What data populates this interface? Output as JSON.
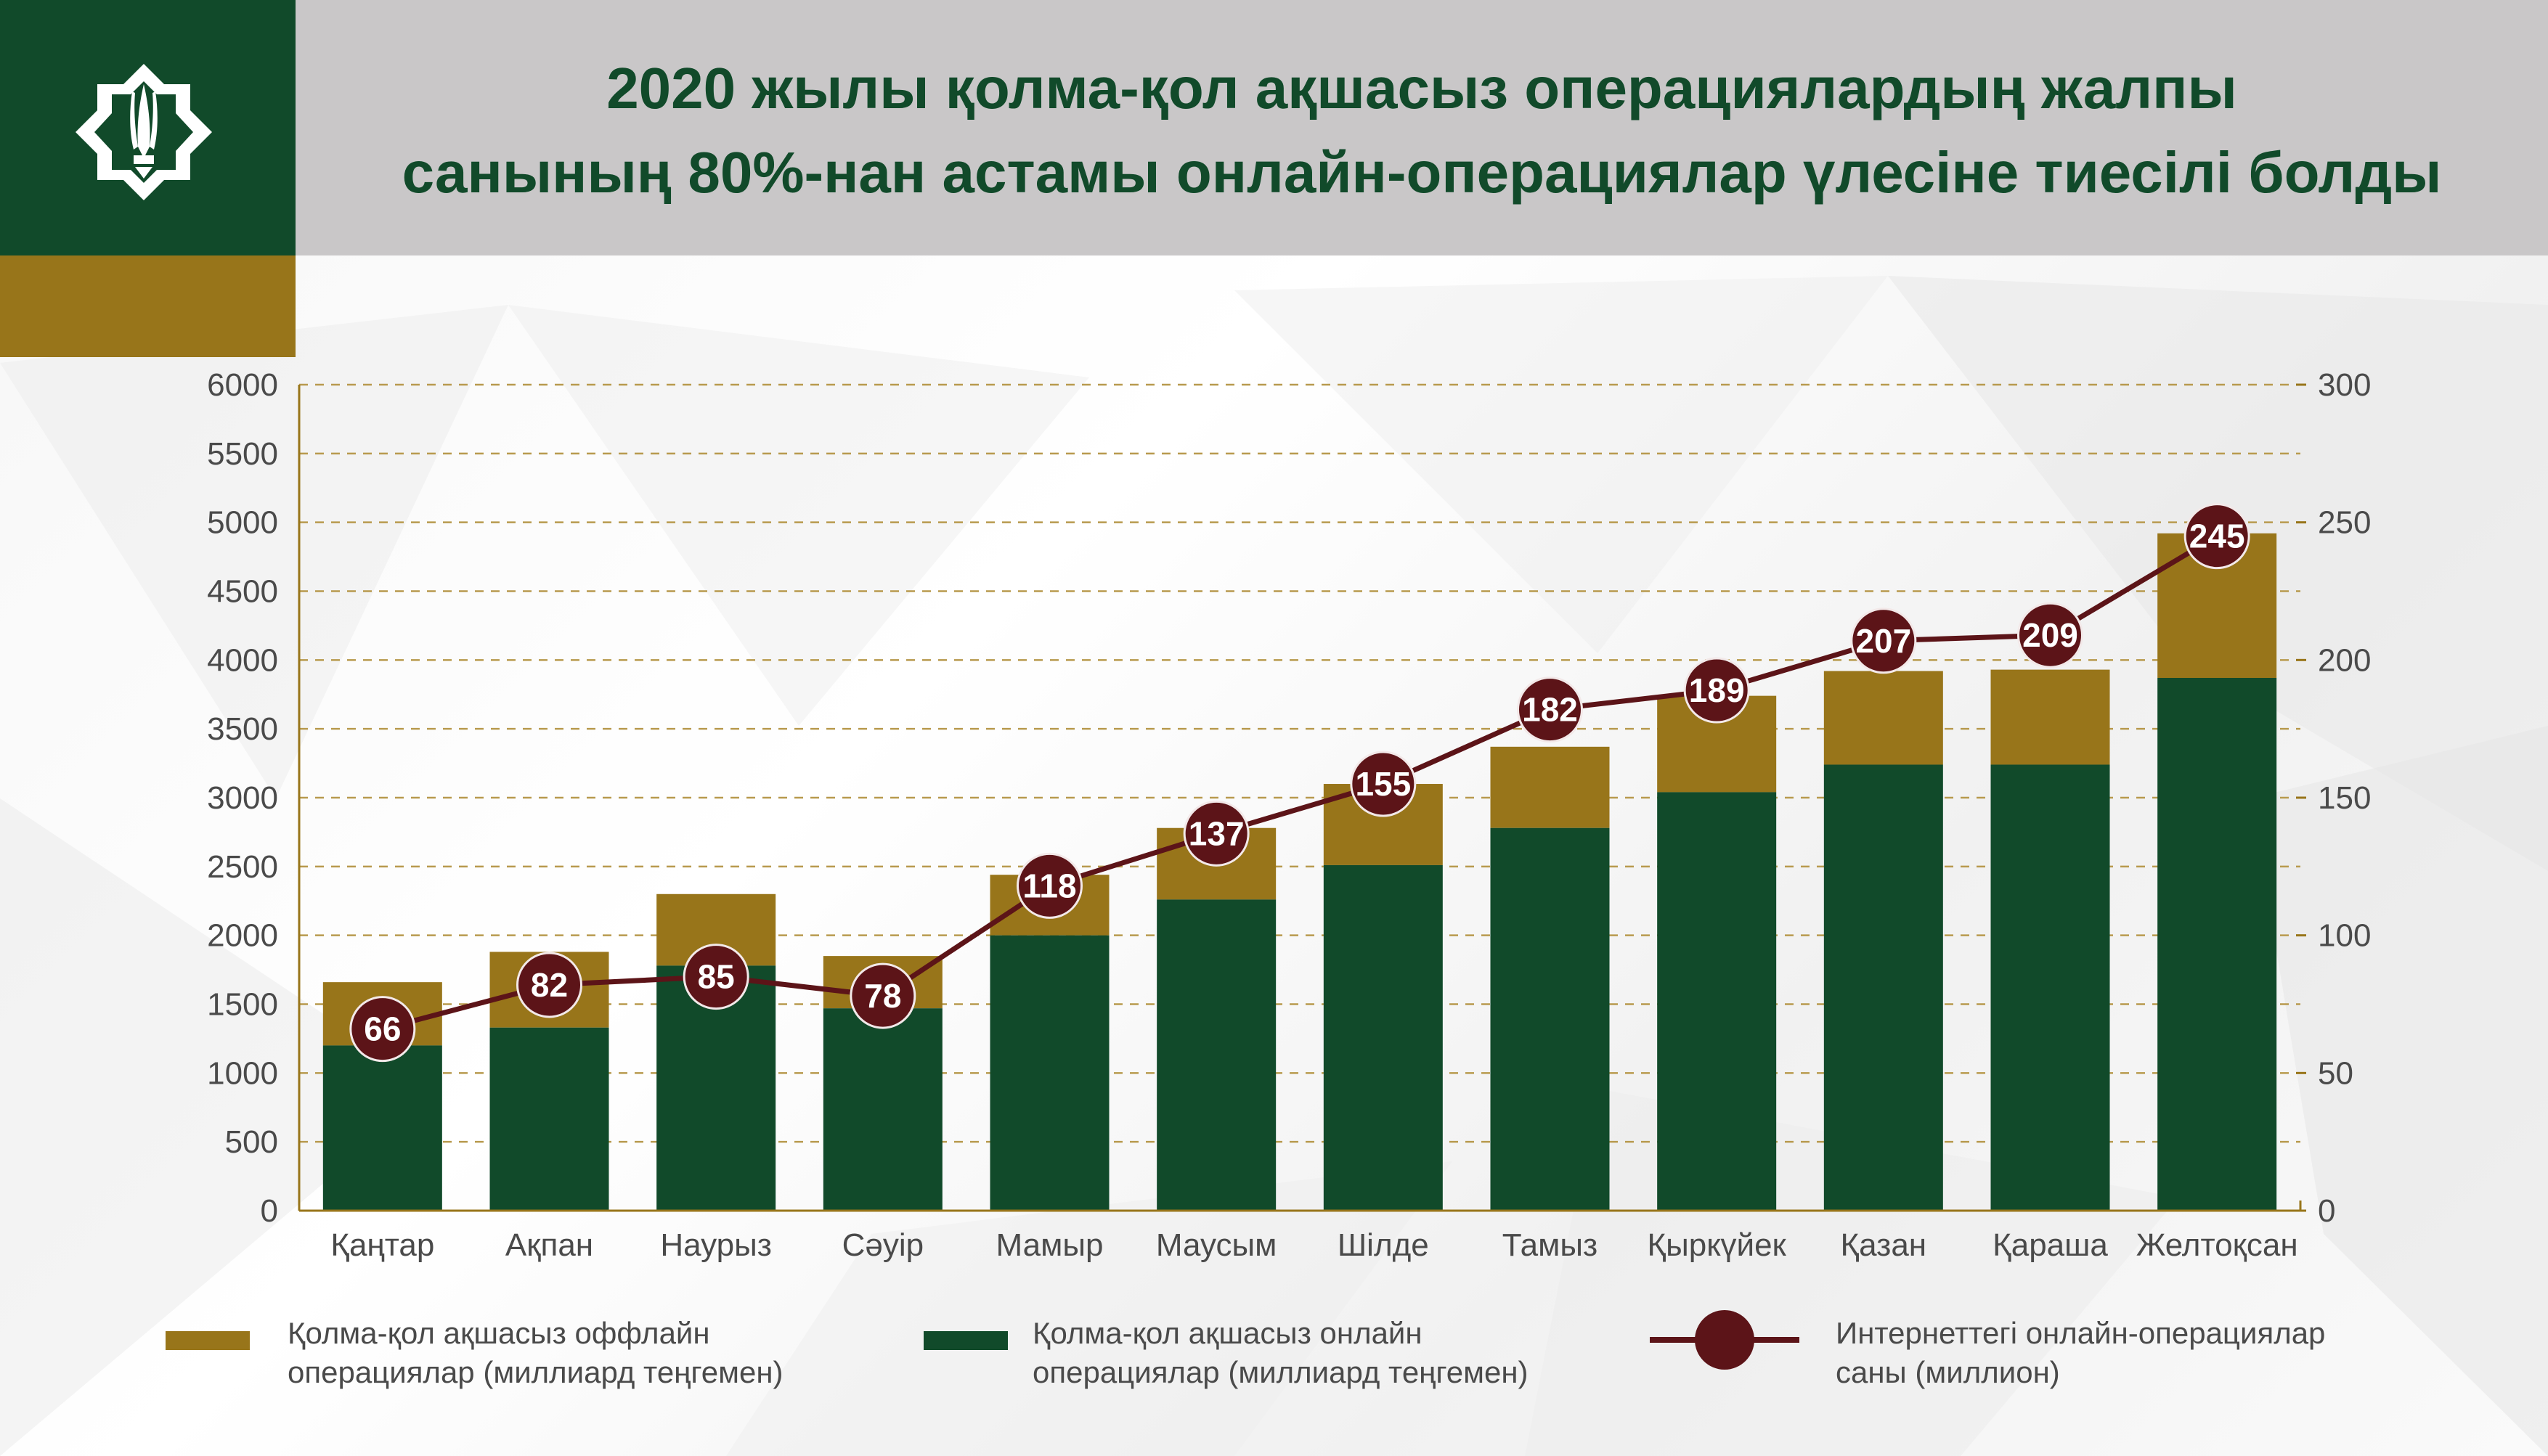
{
  "header": {
    "title_line1": "2020 жылы қолма-қол ақшасыз операциялардың жалпы",
    "title_line2": "санының 80%-нан астамы онлайн-операциялар үлесіне тиесілі болды"
  },
  "colors": {
    "green": "#114a2a",
    "gold": "#98751a",
    "maroon": "#5c1418",
    "title_band": "#c9c7c8"
  },
  "logo": {
    "icon": "emblem-icon"
  },
  "chart_data": {
    "type": "bar",
    "stacked": true,
    "categories": [
      "Қаңтар",
      "Ақпан",
      "Наурыз",
      "Сәуір",
      "Мамыр",
      "Маусым",
      "Шілде",
      "Тамыз",
      "Қыркүйек",
      "Қазан",
      "Қараша",
      "Желтоқсан"
    ],
    "series": [
      {
        "name": "Қолма-қол ақшасыз онлайн операциялар (миллиард теңгемен)",
        "axis": "left",
        "values": [
          1200,
          1330,
          1780,
          1470,
          2000,
          2260,
          2510,
          2780,
          3040,
          3240,
          3240,
          3870
        ]
      },
      {
        "name": "Қолма-қол ақшасыз оффлайн операциялар (миллиард теңгемен)",
        "axis": "left",
        "values": [
          460,
          550,
          520,
          380,
          440,
          520,
          590,
          590,
          700,
          680,
          690,
          1050
        ]
      },
      {
        "name": "Интернеттегі онлайн-операциялар саны (миллион)",
        "type": "line",
        "axis": "right",
        "values": [
          66,
          82,
          85,
          78,
          118,
          137,
          155,
          182,
          189,
          207,
          209,
          245
        ]
      }
    ],
    "y_left": {
      "ylim": [
        0,
        6000
      ],
      "ticks": [
        "0",
        "500",
        "1000",
        "1500",
        "2000",
        "2500",
        "3000",
        "3500",
        "4000",
        "4500",
        "5000",
        "5500",
        "6000"
      ]
    },
    "y_right": {
      "ylim": [
        0,
        300
      ],
      "ticks": [
        "0",
        "50",
        "100",
        "150",
        "200",
        "250",
        "300"
      ]
    },
    "grid": "dashed horizontal",
    "legend_position": "bottom"
  },
  "legend": {
    "offline_line1": "Қолма-қол ақшасыз оффлайн",
    "offline_line2": "операциялар (миллиард теңгемен)",
    "online_line1": "Қолма-қол ақшасыз онлайн",
    "online_line2": "операциялар (миллиард теңгемен)",
    "count_line1": "Интернеттегі онлайн-операциялар",
    "count_line2": "саны (миллион)"
  }
}
